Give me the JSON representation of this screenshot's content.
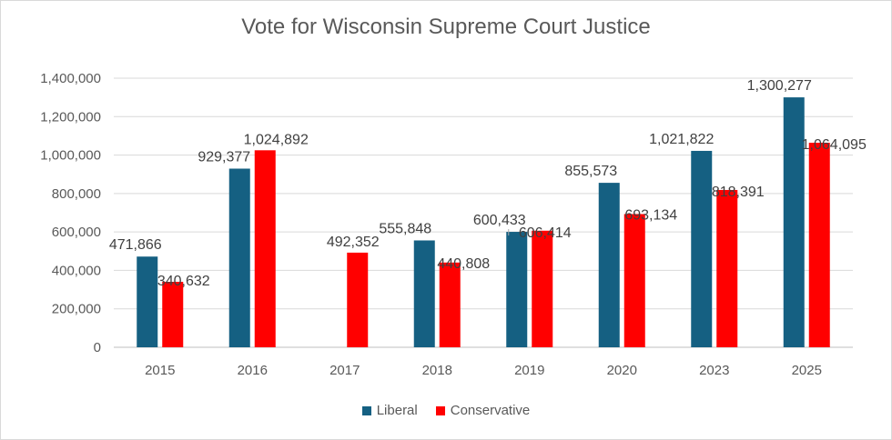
{
  "chart_data": {
    "type": "bar",
    "title": "Vote for Wisconsin Supreme Court Justice",
    "xlabel": "",
    "ylabel": "",
    "categories": [
      "2015",
      "2016",
      "2017",
      "2018",
      "2019",
      "2020",
      "2023",
      "2025"
    ],
    "series": [
      {
        "name": "Liberal",
        "color": "#156082",
        "values": [
          471866,
          929377,
          null,
          555848,
          600433,
          855573,
          1021822,
          1300277
        ],
        "labels": [
          "471,866",
          "929,377",
          "",
          "555,848",
          "600,433",
          "855,573",
          "1,021,822",
          "1,300,277"
        ]
      },
      {
        "name": "Conservative",
        "color": "#ff0000",
        "values": [
          340632,
          1024892,
          492352,
          440808,
          606414,
          693134,
          818391,
          1064095
        ],
        "labels": [
          "340,632",
          "1,024,892",
          "492,352",
          "440,808",
          "606,414",
          "693,134",
          "818,391",
          "1,064,095"
        ]
      }
    ],
    "ylim": [
      0,
      1400000
    ],
    "yticks": [
      0,
      200000,
      400000,
      600000,
      800000,
      1000000,
      1200000,
      1400000
    ],
    "ytick_labels": [
      "0",
      "200,000",
      "400,000",
      "600,000",
      "800,000",
      "1,000,000",
      "1,200,000",
      "1,400,000"
    ],
    "grid": true,
    "legend_position": "bottom"
  }
}
